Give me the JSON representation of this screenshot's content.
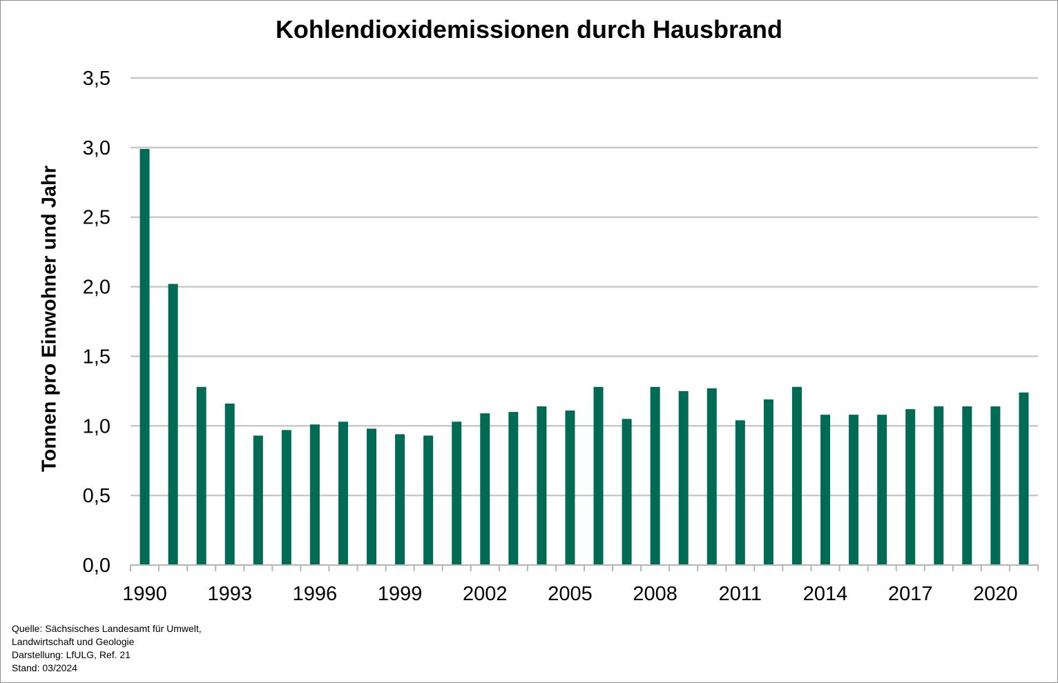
{
  "chart_data": {
    "type": "bar",
    "title": "Kohlendioxidemissionen durch Hausbrand",
    "ylabel": "Tonnen pro Einwohner und Jahr",
    "xlabel": "",
    "ylim": [
      0,
      3.5
    ],
    "yticks": [
      "0,0",
      "0,5",
      "1,0",
      "1,5",
      "2,0",
      "2,5",
      "3,0",
      "3,5"
    ],
    "grid": true,
    "bar_color": "#006b54",
    "categories": [
      "1990",
      "1991",
      "1992",
      "1993",
      "1994",
      "1995",
      "1996",
      "1997",
      "1998",
      "1999",
      "2000",
      "2001",
      "2002",
      "2003",
      "2004",
      "2005",
      "2006",
      "2007",
      "2008",
      "2009",
      "2010",
      "2011",
      "2012",
      "2013",
      "2014",
      "2015",
      "2016",
      "2017",
      "2018",
      "2019",
      "2020",
      "2021"
    ],
    "xtick_labels_shown": [
      "1990",
      "1993",
      "1996",
      "1999",
      "2002",
      "2005",
      "2008",
      "2011",
      "2014",
      "2017",
      "2020"
    ],
    "values": [
      2.99,
      2.02,
      1.28,
      1.16,
      0.93,
      0.97,
      1.01,
      1.03,
      0.98,
      0.94,
      0.93,
      1.03,
      1.09,
      1.1,
      1.14,
      1.11,
      1.28,
      1.05,
      1.28,
      1.25,
      1.27,
      1.04,
      1.19,
      1.28,
      1.08,
      1.08,
      1.08,
      1.12,
      1.14,
      1.14,
      1.14,
      1.24
    ]
  },
  "source": {
    "line1": "Quelle: Sächsisches Landesamt für Umwelt,",
    "line2": "Landwirtschaft und Geologie",
    "line3": "Darstellung: LfULG, Ref. 21",
    "line4": "Stand: 03/2024"
  }
}
